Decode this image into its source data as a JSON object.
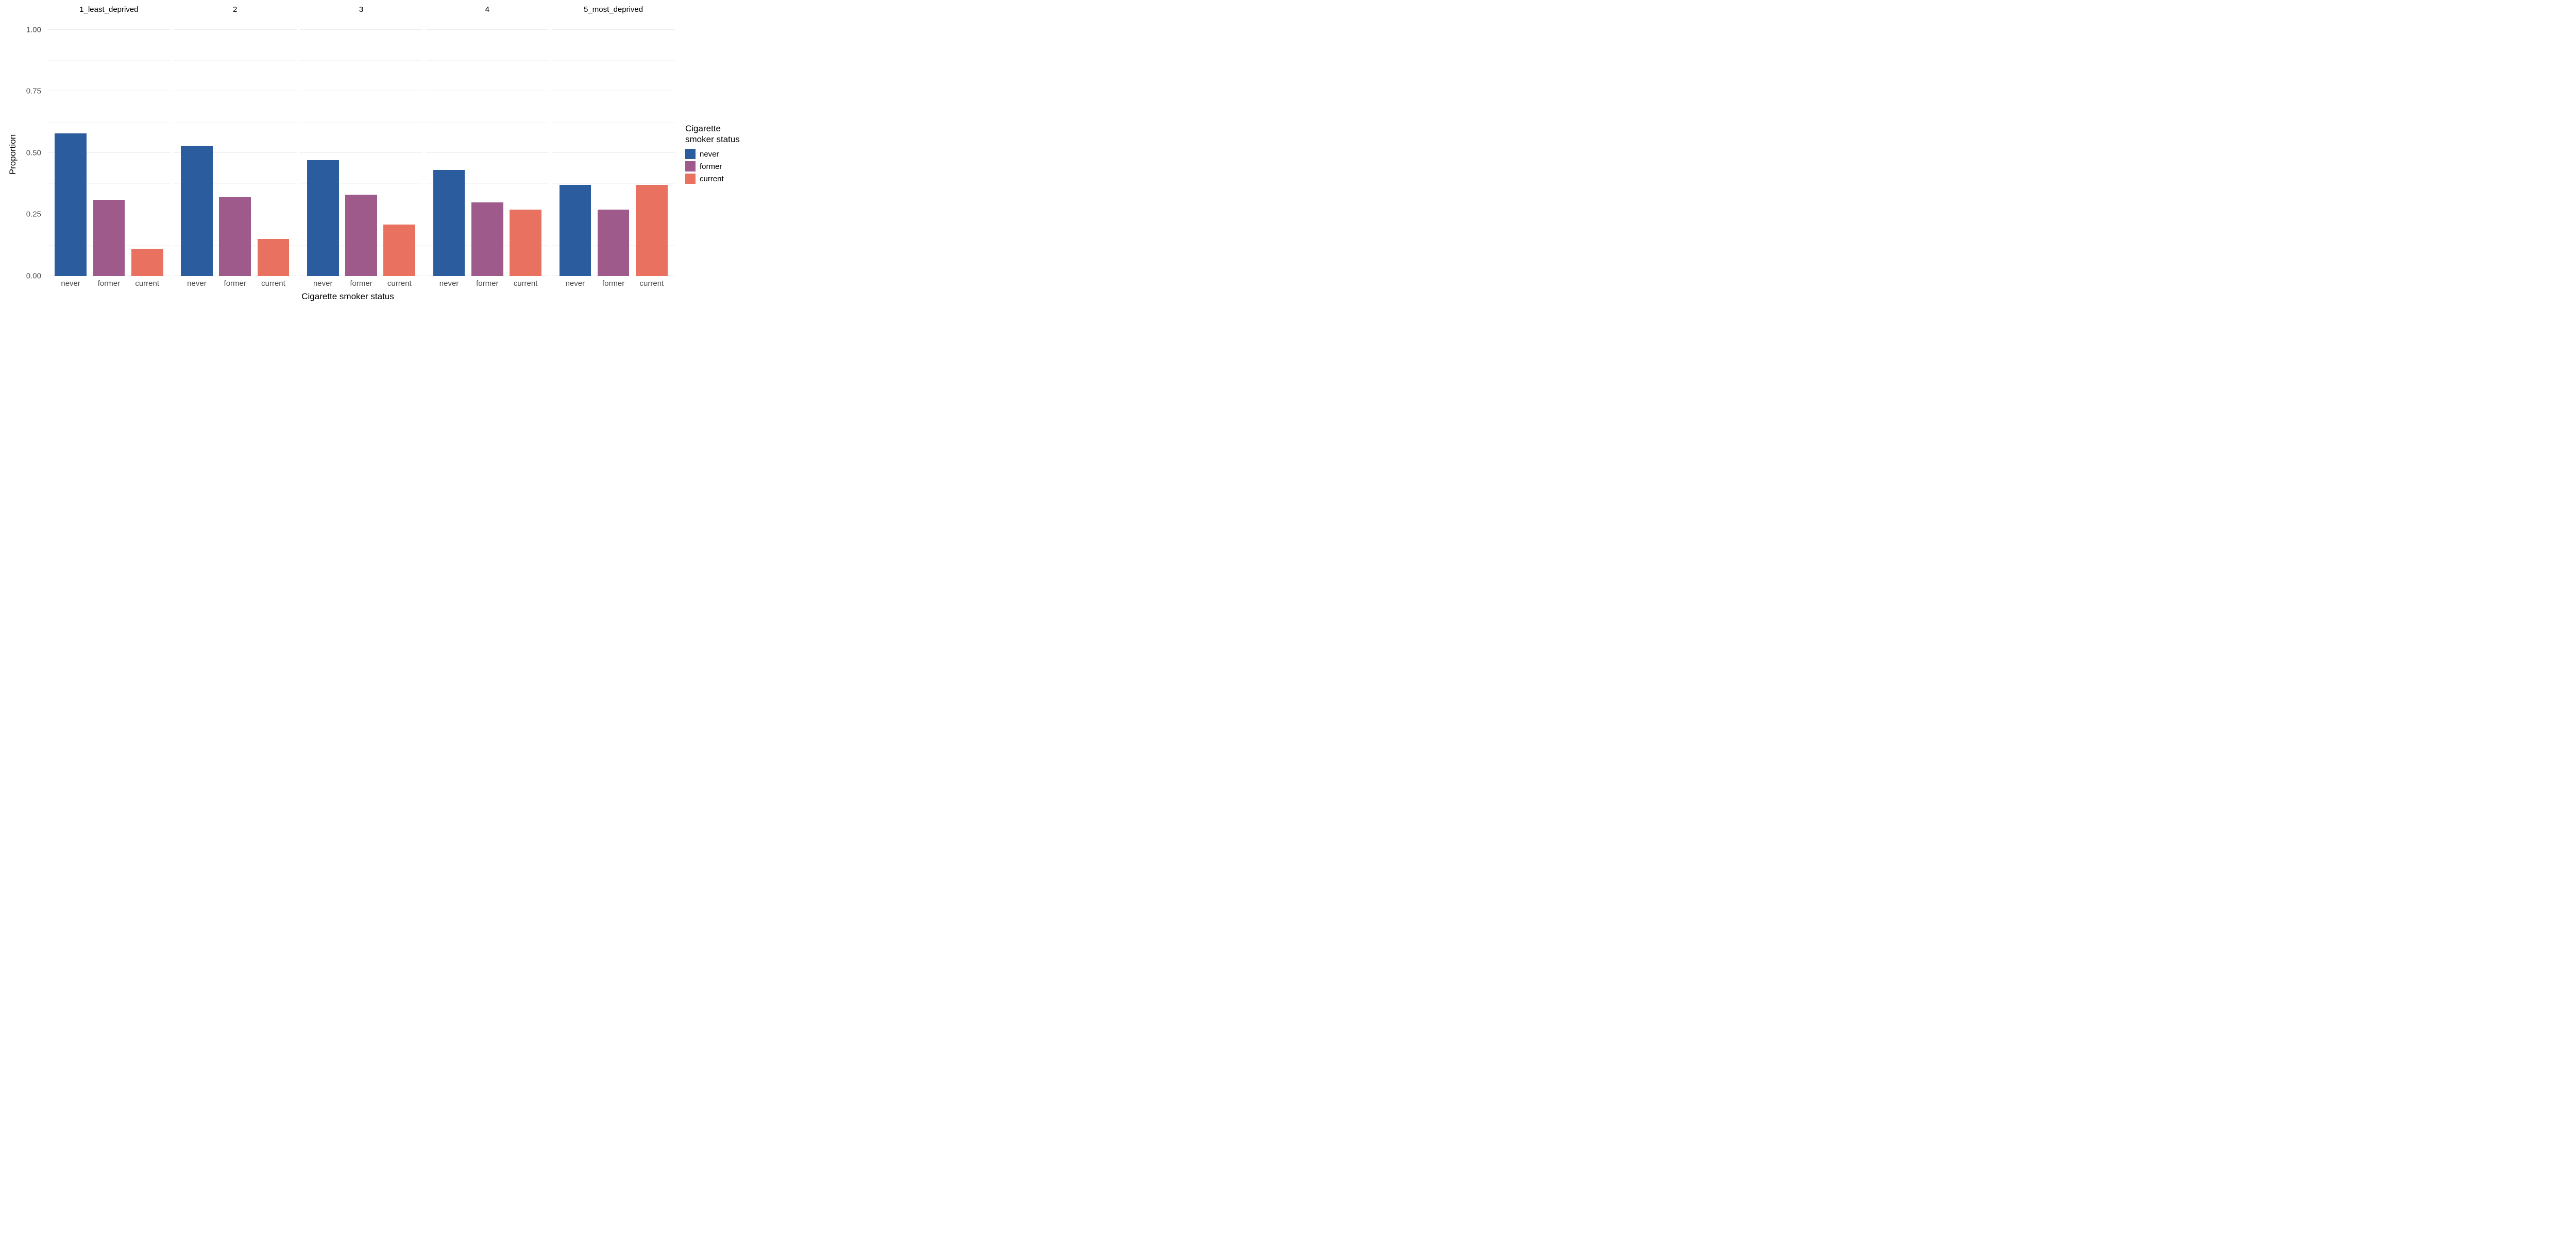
{
  "chart": {
    "type": "bar",
    "x_axis_title": "Cigarette smoker status",
    "y_axis_title": "Proportion",
    "ylim": [
      0,
      1.05
    ],
    "y_ticks_major": [
      0.0,
      0.25,
      0.5,
      0.75,
      1.0
    ],
    "y_ticks_minor": [
      0.125,
      0.375,
      0.625,
      0.875
    ],
    "y_tick_labels": [
      "0.00",
      "0.25",
      "0.50",
      "0.75",
      "1.00"
    ],
    "x_categories": [
      "never",
      "former",
      "current"
    ],
    "background_color": "#ffffff",
    "grid_major_color": "#ebebeb",
    "grid_minor_color": "#f5f5f5",
    "axis_text_color": "#4d4d4d",
    "title_text_color": "#000000",
    "axis_title_fontsize": 17,
    "tick_fontsize": 15,
    "facet_title_fontsize": 15,
    "legend": {
      "title": "Cigarette\nsmoker status",
      "items": [
        {
          "label": "never",
          "color": "#2b5c9e"
        },
        {
          "label": "former",
          "color": "#9f5a8c"
        },
        {
          "label": "current",
          "color": "#e8715f"
        }
      ]
    },
    "facets": [
      {
        "title": "1_least_deprived",
        "values": [
          0.58,
          0.31,
          0.11
        ],
        "colors": [
          "#2b5c9e",
          "#9f5a8c",
          "#e8715f"
        ]
      },
      {
        "title": "2",
        "values": [
          0.53,
          0.32,
          0.15
        ],
        "colors": [
          "#2b5c9e",
          "#9f5a8c",
          "#e8715f"
        ]
      },
      {
        "title": "3",
        "values": [
          0.47,
          0.33,
          0.21
        ],
        "colors": [
          "#2b5c9e",
          "#9f5a8c",
          "#e8715f"
        ]
      },
      {
        "title": "4",
        "values": [
          0.43,
          0.3,
          0.27
        ],
        "colors": [
          "#2b5c9e",
          "#9f5a8c",
          "#e8715f"
        ]
      },
      {
        "title": "5_most_deprived",
        "values": [
          0.37,
          0.27,
          0.37
        ],
        "colors": [
          "#2b5c9e",
          "#9f5a8c",
          "#e8715f"
        ]
      }
    ]
  }
}
